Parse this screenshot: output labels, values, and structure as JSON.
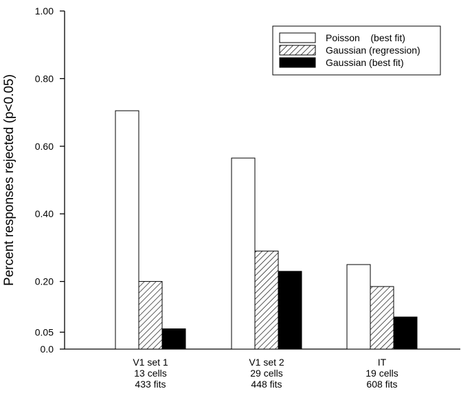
{
  "chart_data": {
    "type": "bar",
    "ylabel": "Percent responses rejected (p<0.05)",
    "ylim": [
      0,
      1.0
    ],
    "yticks": [
      "0.0",
      "0.05",
      "0.20",
      "0.40",
      "0.60",
      "0.80",
      "1.00"
    ],
    "ytick_values": [
      0.0,
      0.05,
      0.2,
      0.4,
      0.6,
      0.8,
      1.0
    ],
    "categories": [
      [
        "V1 set 1",
        "13 cells",
        "433 fits"
      ],
      [
        "V1 set 2",
        "29 cells",
        "448 fits"
      ],
      [
        "IT",
        "19 cells",
        "608 fits"
      ]
    ],
    "series": [
      {
        "name": "Poisson    (best fit)",
        "fill": "white",
        "values": [
          0.705,
          0.565,
          0.25
        ]
      },
      {
        "name": "Gaussian (regression)",
        "fill": "hatch",
        "values": [
          0.2,
          0.29,
          0.185
        ]
      },
      {
        "name": "Gaussian (best fit)",
        "fill": "black",
        "values": [
          0.06,
          0.23,
          0.095
        ]
      }
    ],
    "legend_position": "top-right",
    "grid": false
  }
}
